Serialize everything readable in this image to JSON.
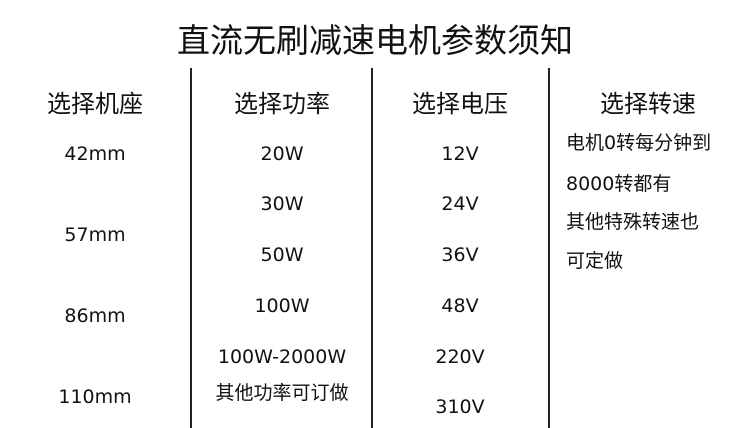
{
  "title": "直流无刷减速电机参数须知",
  "columns": [
    {
      "header": "选择机座",
      "items": [
        "42mm",
        "57mm",
        "86mm",
        "110mm"
      ]
    },
    {
      "header": "选择功率",
      "items": [
        "20W",
        "30W",
        "50W",
        "100W",
        "100W-2000W",
        "其他功率可订做"
      ]
    },
    {
      "header": "选择电压",
      "items": [
        "12V",
        "24V",
        "36V",
        "48V",
        "220V",
        "310V"
      ]
    },
    {
      "header": "选择转速",
      "lines": [
        "电机0转每分钟到",
        "8000转都有",
        "其他特殊转速也",
        "可定做"
      ]
    }
  ]
}
